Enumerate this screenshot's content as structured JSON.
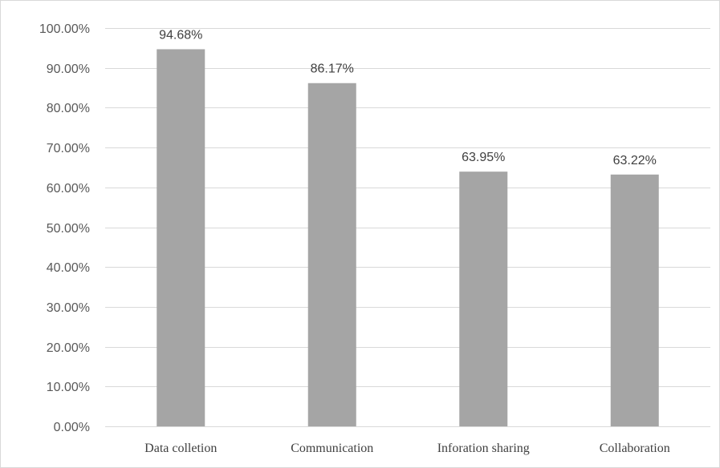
{
  "chart_data": {
    "type": "bar",
    "title": "",
    "xlabel": "",
    "ylabel": "",
    "categories": [
      "Data colletion",
      "Communication",
      "Inforation sharing",
      "Collaboration"
    ],
    "values": [
      94.68,
      86.17,
      63.95,
      63.22
    ],
    "value_labels": [
      "94.68%",
      "86.17%",
      "63.95%",
      "63.22%"
    ],
    "ylim": [
      0,
      100
    ],
    "y_ticks": [
      0,
      10,
      20,
      30,
      40,
      50,
      60,
      70,
      80,
      90,
      100
    ],
    "y_tick_labels": [
      "0.00%",
      "10.00%",
      "20.00%",
      "30.00%",
      "40.00%",
      "50.00%",
      "60.00%",
      "70.00%",
      "80.00%",
      "90.00%",
      "100.00%"
    ],
    "grid": true,
    "legend": "none",
    "bar_color": "#a5a5a5",
    "grid_color": "#d9d9d9"
  }
}
